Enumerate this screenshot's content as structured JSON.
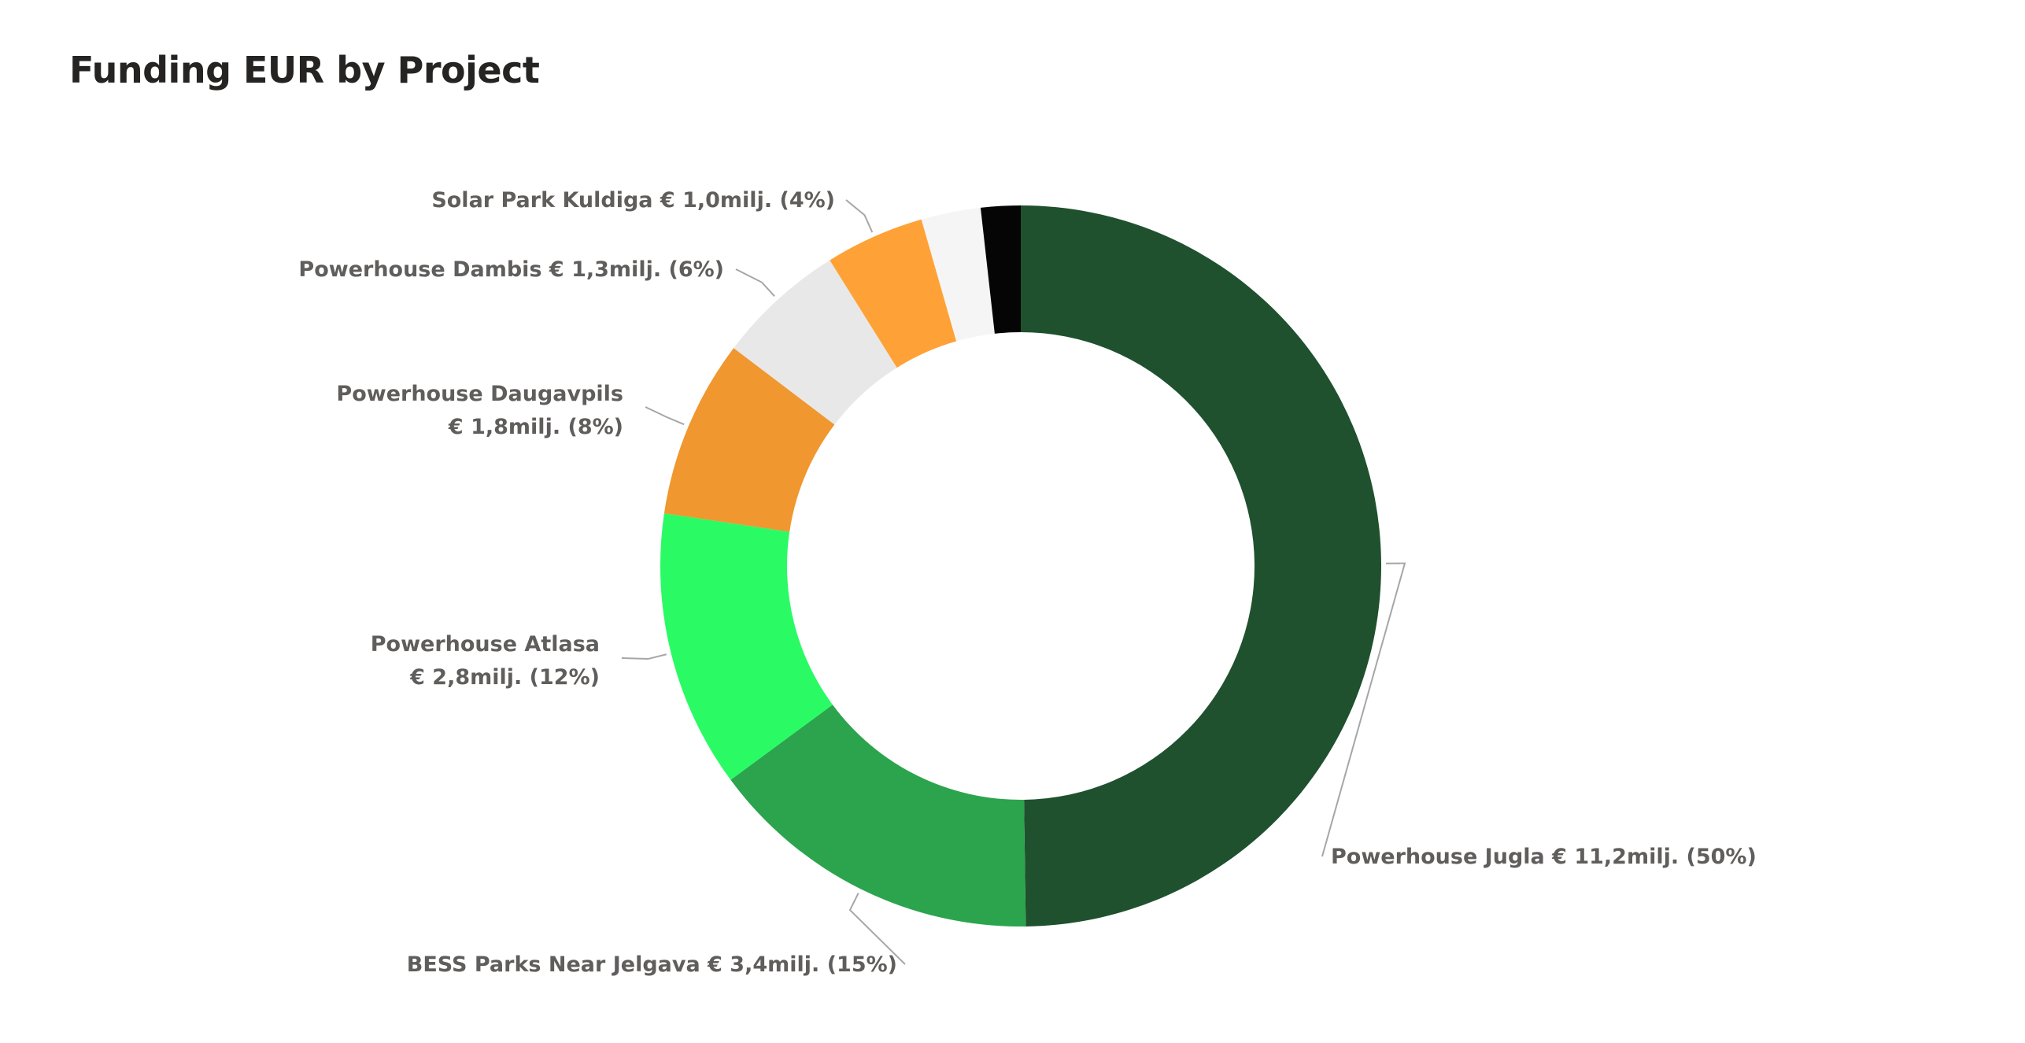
{
  "chart_data": {
    "type": "pie",
    "variant": "donut",
    "title": "Funding EUR by Project",
    "value_unit": "milj. EUR",
    "legend": "none",
    "slices": [
      {
        "name": "Powerhouse Jugla",
        "value": 11.2,
        "percent": 50,
        "color": "#1f512e",
        "label_lines": [
          "Powerhouse Jugla € 11,2milj. (50%)"
        ],
        "label_side": "right"
      },
      {
        "name": "BESS Parks Near Jelgava",
        "value": 3.4,
        "percent": 15,
        "color": "#2ba44d",
        "label_lines": [
          "BESS Parks Near Jelgava € 3,4milj. (15%)"
        ],
        "label_side": "left"
      },
      {
        "name": "Powerhouse Atlasa",
        "value": 2.8,
        "percent": 12,
        "color": "#2afb64",
        "label_lines": [
          "Powerhouse Atlasa",
          "€ 2,8milj. (12%)"
        ],
        "label_side": "left"
      },
      {
        "name": "Powerhouse Daugavpils",
        "value": 1.8,
        "percent": 8,
        "color": "#f0972f",
        "label_lines": [
          "Powerhouse Daugavpils",
          "€ 1,8milj. (8%)"
        ],
        "label_side": "left"
      },
      {
        "name": "Powerhouse Dambis",
        "value": 1.3,
        "percent": 6,
        "color": "#e8e8e8",
        "label_lines": [
          "Powerhouse Dambis € 1,3milj. (6%)"
        ],
        "label_side": "left"
      },
      {
        "name": "Solar Park Kuldiga",
        "value": 1.0,
        "percent": 4,
        "color": "#fea237",
        "label_lines": [
          "Solar Park Kuldiga € 1,0milj. (4%)"
        ],
        "label_side": "left"
      },
      {
        "name": "",
        "value": 0.6,
        "color": "#f5f5f5",
        "label_lines": []
      },
      {
        "name": "",
        "value": 0.4,
        "color": "#050505",
        "label_lines": []
      }
    ]
  }
}
